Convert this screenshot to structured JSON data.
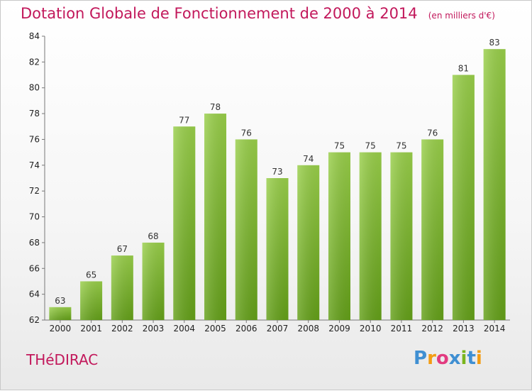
{
  "title": "Dotation Globale de Fonctionnement de 2000 à 2014",
  "subtitle": "(en milliers d'€)",
  "commune": "THéDIRAC",
  "logo": {
    "text": "Proxiti",
    "letters": [
      "P",
      "r",
      "o",
      "x",
      "i",
      "t",
      "i"
    ],
    "colors": [
      "#3f8fd2",
      "#f39c12",
      "#e23b80",
      "#3f8fd2",
      "#7ab51d",
      "#3f8fd2",
      "#f39c12"
    ]
  },
  "colors": {
    "bar_top": "#99cf4a",
    "bar_bottom": "#64a019",
    "title": "#c2185b"
  },
  "chart_data": {
    "type": "bar",
    "categories": [
      "2000",
      "2001",
      "2002",
      "2003",
      "2004",
      "2005",
      "2006",
      "2007",
      "2008",
      "2009",
      "2010",
      "2011",
      "2012",
      "2013",
      "2014"
    ],
    "values": [
      63,
      65,
      67,
      68,
      77,
      78,
      76,
      73,
      74,
      75,
      75,
      75,
      76,
      81,
      83
    ],
    "ylim": [
      62,
      84
    ],
    "yticks": [
      62,
      64,
      66,
      68,
      70,
      72,
      74,
      76,
      78,
      80,
      82,
      84
    ],
    "grid": false,
    "xlabel": "",
    "ylabel": ""
  }
}
